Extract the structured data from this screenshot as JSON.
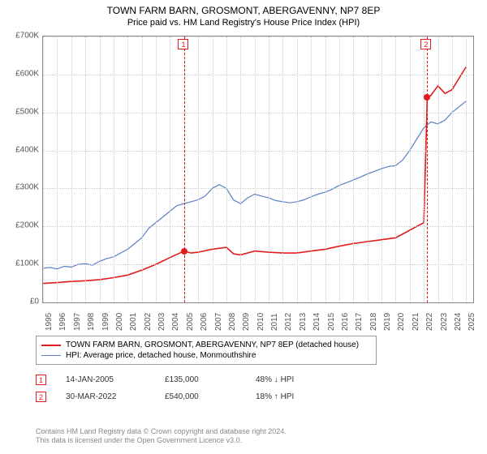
{
  "title": "TOWN FARM BARN, GROSMONT, ABERGAVENNY, NP7 8EP",
  "subtitle": "Price paid vs. HM Land Registry's House Price Index (HPI)",
  "chart": {
    "type": "line",
    "ylim": [
      0,
      700000
    ],
    "ytick_step": 100000,
    "ylabels": [
      "£0",
      "£100K",
      "£200K",
      "£300K",
      "£400K",
      "£500K",
      "£600K",
      "£700K"
    ],
    "xyears": [
      1995,
      1996,
      1997,
      1998,
      1999,
      2000,
      2001,
      2002,
      2003,
      2004,
      2005,
      2006,
      2007,
      2008,
      2009,
      2010,
      2011,
      2012,
      2013,
      2014,
      2015,
      2016,
      2017,
      2018,
      2019,
      2020,
      2021,
      2022,
      2023,
      2024,
      2025
    ],
    "grid_color": "#cccccc",
    "border_color": "#888888",
    "background_color": "#ffffff",
    "series": [
      {
        "name": "property",
        "label": "TOWN FARM BARN, GROSMONT, ABERGAVENNY, NP7 8EP (detached house)",
        "color": "#e21b1b",
        "width": 1.6,
        "data": [
          [
            1995,
            50000
          ],
          [
            1996,
            52000
          ],
          [
            1997,
            55000
          ],
          [
            1998,
            57000
          ],
          [
            1999,
            60000
          ],
          [
            2000,
            65000
          ],
          [
            2001,
            72000
          ],
          [
            2002,
            85000
          ],
          [
            2003,
            100000
          ],
          [
            2004,
            118000
          ],
          [
            2005,
            135000
          ],
          [
            2005.5,
            130000
          ],
          [
            2006,
            132000
          ],
          [
            2007,
            140000
          ],
          [
            2008,
            145000
          ],
          [
            2008.5,
            128000
          ],
          [
            2009,
            125000
          ],
          [
            2010,
            135000
          ],
          [
            2011,
            132000
          ],
          [
            2012,
            130000
          ],
          [
            2013,
            130000
          ],
          [
            2014,
            135000
          ],
          [
            2015,
            140000
          ],
          [
            2016,
            148000
          ],
          [
            2017,
            155000
          ],
          [
            2018,
            160000
          ],
          [
            2019,
            165000
          ],
          [
            2020,
            170000
          ],
          [
            2021,
            190000
          ],
          [
            2022,
            210000
          ],
          [
            2022.24,
            540000
          ],
          [
            2022.5,
            545000
          ],
          [
            2023,
            570000
          ],
          [
            2023.5,
            550000
          ],
          [
            2024,
            560000
          ],
          [
            2024.5,
            590000
          ],
          [
            2025,
            620000
          ]
        ]
      },
      {
        "name": "hpi",
        "label": "HPI: Average price, detached house, Monmouthshire",
        "color": "#5b7fc7",
        "width": 1.2,
        "data": [
          [
            1995,
            90000
          ],
          [
            1995.5,
            92000
          ],
          [
            1996,
            88000
          ],
          [
            1996.5,
            95000
          ],
          [
            1997,
            93000
          ],
          [
            1997.5,
            100000
          ],
          [
            1998,
            102000
          ],
          [
            1998.5,
            98000
          ],
          [
            1999,
            108000
          ],
          [
            1999.5,
            115000
          ],
          [
            2000,
            120000
          ],
          [
            2000.5,
            130000
          ],
          [
            2001,
            140000
          ],
          [
            2001.5,
            155000
          ],
          [
            2002,
            170000
          ],
          [
            2002.5,
            195000
          ],
          [
            2003,
            210000
          ],
          [
            2003.5,
            225000
          ],
          [
            2004,
            240000
          ],
          [
            2004.5,
            255000
          ],
          [
            2005,
            260000
          ],
          [
            2005.5,
            265000
          ],
          [
            2006,
            270000
          ],
          [
            2006.5,
            280000
          ],
          [
            2007,
            300000
          ],
          [
            2007.5,
            310000
          ],
          [
            2008,
            300000
          ],
          [
            2008.5,
            270000
          ],
          [
            2009,
            260000
          ],
          [
            2009.5,
            275000
          ],
          [
            2010,
            285000
          ],
          [
            2010.5,
            280000
          ],
          [
            2011,
            275000
          ],
          [
            2011.5,
            268000
          ],
          [
            2012,
            265000
          ],
          [
            2012.5,
            262000
          ],
          [
            2013,
            265000
          ],
          [
            2013.5,
            270000
          ],
          [
            2014,
            278000
          ],
          [
            2014.5,
            285000
          ],
          [
            2015,
            290000
          ],
          [
            2015.5,
            298000
          ],
          [
            2016,
            308000
          ],
          [
            2016.5,
            315000
          ],
          [
            2017,
            322000
          ],
          [
            2017.5,
            330000
          ],
          [
            2018,
            338000
          ],
          [
            2018.5,
            345000
          ],
          [
            2019,
            352000
          ],
          [
            2019.5,
            358000
          ],
          [
            2020,
            360000
          ],
          [
            2020.5,
            375000
          ],
          [
            2021,
            400000
          ],
          [
            2021.5,
            430000
          ],
          [
            2022,
            460000
          ],
          [
            2022.5,
            475000
          ],
          [
            2023,
            470000
          ],
          [
            2023.5,
            480000
          ],
          [
            2024,
            500000
          ],
          [
            2024.5,
            515000
          ],
          [
            2025,
            530000
          ]
        ]
      }
    ],
    "markers": [
      {
        "id": "1",
        "year": 2005.04,
        "price": 135000
      },
      {
        "id": "2",
        "year": 2022.24,
        "price": 540000
      }
    ]
  },
  "legend": {
    "items": [
      {
        "color": "#e21b1b",
        "width": 2,
        "label": "TOWN FARM BARN, GROSMONT, ABERGAVENNY, NP7 8EP (detached house)"
      },
      {
        "color": "#5b7fc7",
        "width": 1,
        "label": "HPI: Average price, detached house, Monmouthshire"
      }
    ]
  },
  "sales": [
    {
      "id": "1",
      "date": "14-JAN-2005",
      "price": "£135,000",
      "delta": "48% ↓ HPI"
    },
    {
      "id": "2",
      "date": "30-MAR-2022",
      "price": "£540,000",
      "delta": "18% ↑ HPI"
    }
  ],
  "credit_line1": "Contains HM Land Registry data © Crown copyright and database right 2024.",
  "credit_line2": "This data is licensed under the Open Government Licence v3.0."
}
